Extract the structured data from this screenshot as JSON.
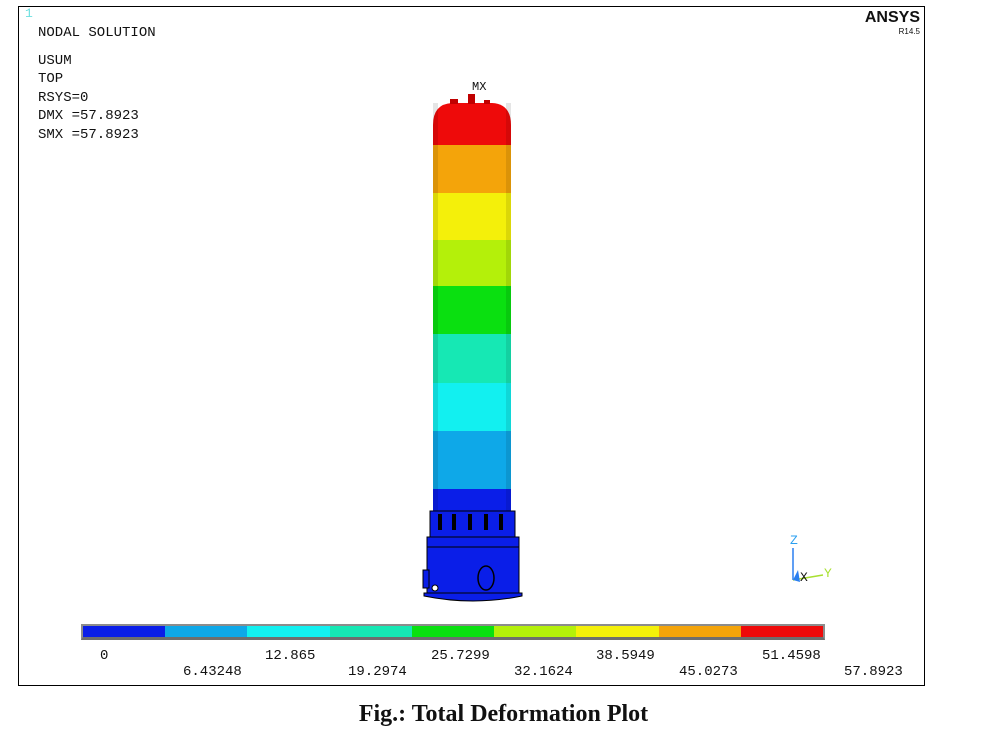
{
  "window_number": "1",
  "brand": "ANSYS",
  "version": "R14.5",
  "info": {
    "title": "NODAL SOLUTION",
    "lines": [
      "USUM",
      "TOP",
      "RSYS=0",
      "DMX =57.8923",
      "SMX =57.8923"
    ]
  },
  "max_marker": "MX",
  "legend": {
    "colors": [
      "#0a1ee8",
      "#0ea8e8",
      "#12f0f0",
      "#16e8b4",
      "#0ae010",
      "#b4f00a",
      "#f4f00a",
      "#f4a40a",
      "#ee0a0a"
    ],
    "labels_top": [
      "0",
      "12.865",
      "25.7299",
      "38.5949",
      "51.4598"
    ],
    "labels_bottom": [
      "6.43248",
      "19.2974",
      "32.1624",
      "45.0273",
      "57.8923"
    ]
  },
  "triad": {
    "z": "Z",
    "x": "X",
    "y": "Y"
  },
  "caption": "Fig.: Total Deformation Plot"
}
